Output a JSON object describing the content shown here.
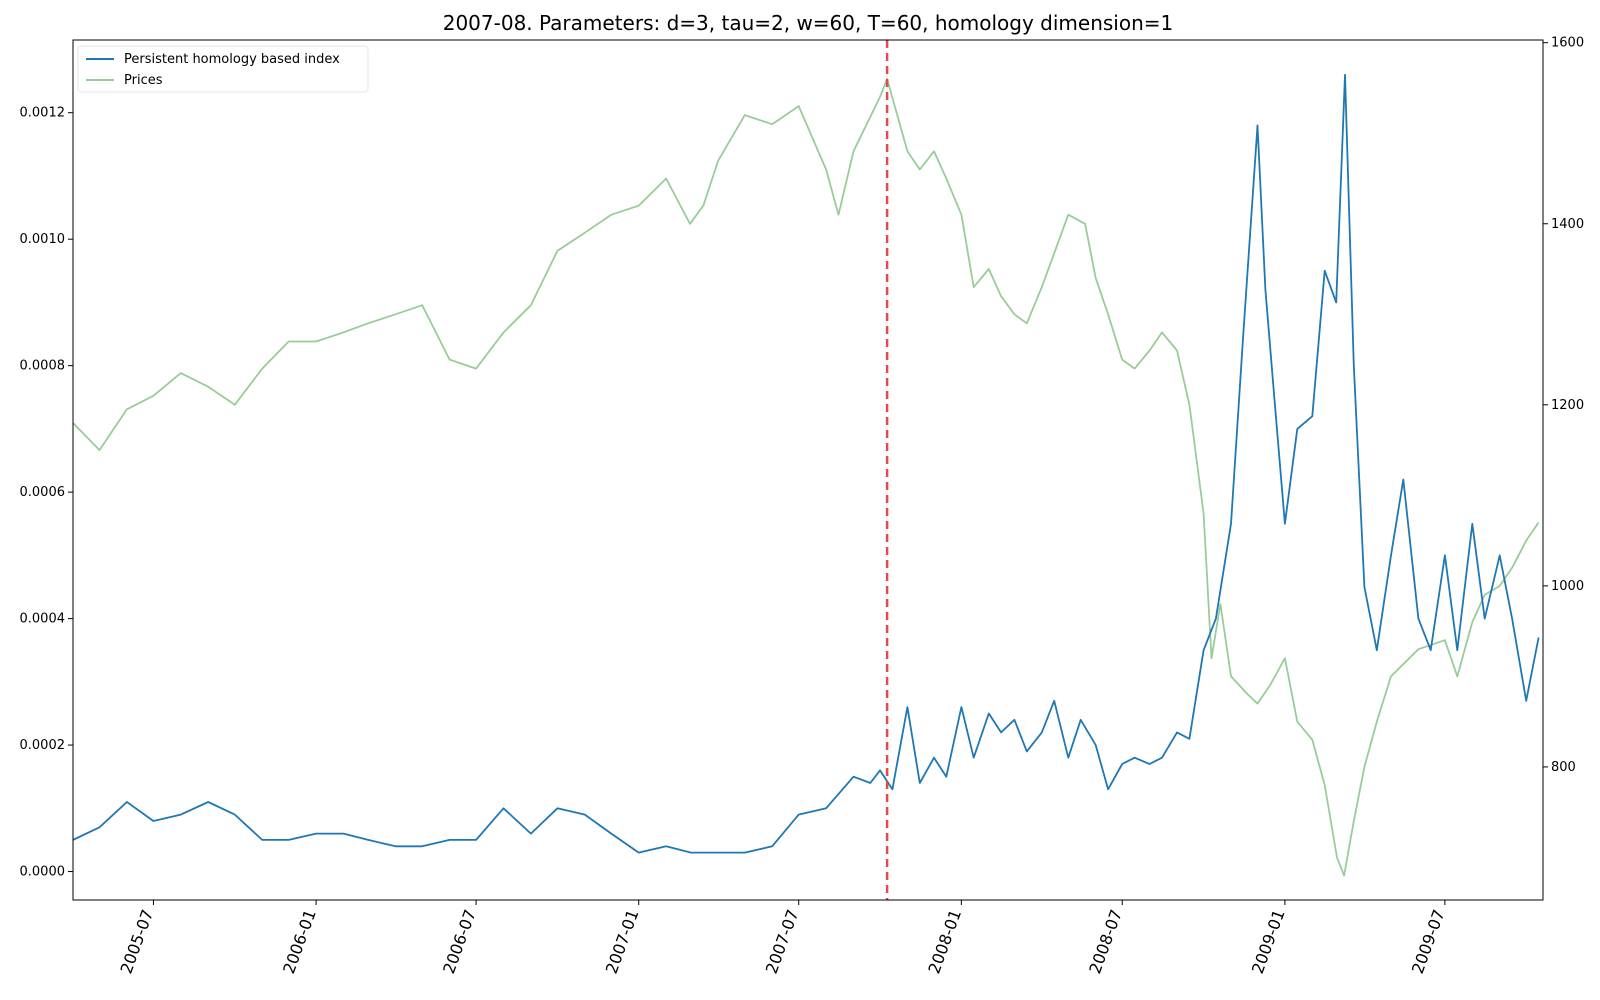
{
  "chart_data": {
    "type": "line",
    "title": "2007-08. Parameters: d=3, tau=2, w=60, T=60, homology dimension=1",
    "xlabel": "",
    "ylabel_left": "",
    "ylabel_right": "",
    "x_range": [
      "2005-04-01",
      "2009-10-20"
    ],
    "y_left_range": [
      -4.5e-05,
      0.001315
    ],
    "y_right_range": [
      653,
      1603
    ],
    "x_ticks": [
      "2005-07",
      "2006-01",
      "2006-07",
      "2007-01",
      "2007-07",
      "2008-01",
      "2008-07",
      "2009-01",
      "2009-07"
    ],
    "y_left_ticks": [
      "0.0000",
      "0.0002",
      "0.0004",
      "0.0006",
      "0.0008",
      "0.0010",
      "0.0012"
    ],
    "y_right_ticks": [
      "800",
      "1000",
      "1200",
      "1400",
      "1600"
    ],
    "legend_position": "top-left",
    "grid": false,
    "vertical_marker": {
      "x": "2007-10-09",
      "color": "#e8484a",
      "style": "dashed"
    },
    "series": [
      {
        "name": "Persistent homology based index",
        "axis": "left",
        "color": "#1f77b4",
        "x": [
          "2005-04-01",
          "2005-05-01",
          "2005-06-01",
          "2005-07-01",
          "2005-08-01",
          "2005-09-01",
          "2005-10-01",
          "2005-11-01",
          "2005-12-01",
          "2006-01-01",
          "2006-02-01",
          "2006-03-01",
          "2006-04-01",
          "2006-05-01",
          "2006-06-01",
          "2006-07-01",
          "2006-08-01",
          "2006-09-01",
          "2006-10-01",
          "2006-11-01",
          "2006-12-01",
          "2007-01-01",
          "2007-02-01",
          "2007-03-01",
          "2007-04-01",
          "2007-05-01",
          "2007-06-01",
          "2007-07-01",
          "2007-08-01",
          "2007-09-01",
          "2007-09-20",
          "2007-10-01",
          "2007-10-15",
          "2007-11-01",
          "2007-11-15",
          "2007-12-01",
          "2007-12-15",
          "2008-01-01",
          "2008-01-15",
          "2008-02-01",
          "2008-02-15",
          "2008-03-01",
          "2008-03-15",
          "2008-04-01",
          "2008-04-15",
          "2008-05-01",
          "2008-05-15",
          "2008-06-01",
          "2008-06-15",
          "2008-07-01",
          "2008-07-15",
          "2008-08-01",
          "2008-08-15",
          "2008-09-01",
          "2008-09-15",
          "2008-10-01",
          "2008-10-15",
          "2008-11-01",
          "2008-11-15",
          "2008-12-01",
          "2008-12-10",
          "2008-12-20",
          "2009-01-01",
          "2009-01-15",
          "2009-02-01",
          "2009-02-15",
          "2009-02-28",
          "2009-03-10",
          "2009-03-20",
          "2009-04-01",
          "2009-04-15",
          "2009-05-01",
          "2009-05-15",
          "2009-06-01",
          "2009-06-15",
          "2009-07-01",
          "2009-07-15",
          "2009-08-01",
          "2009-08-15",
          "2009-09-01",
          "2009-09-15",
          "2009-10-01",
          "2009-10-15"
        ],
        "values": [
          5e-05,
          7e-05,
          0.00011,
          8e-05,
          9e-05,
          0.00011,
          9e-05,
          5e-05,
          5e-05,
          6e-05,
          6e-05,
          5e-05,
          4e-05,
          4e-05,
          5e-05,
          5e-05,
          0.0001,
          6e-05,
          0.0001,
          9e-05,
          6e-05,
          3e-05,
          4e-05,
          3e-05,
          3e-05,
          3e-05,
          4e-05,
          9e-05,
          0.0001,
          0.00015,
          0.00014,
          0.00016,
          0.00013,
          0.00026,
          0.00014,
          0.00018,
          0.00015,
          0.00026,
          0.00018,
          0.00025,
          0.00022,
          0.00024,
          0.00019,
          0.00022,
          0.00027,
          0.00018,
          0.00024,
          0.0002,
          0.00013,
          0.00017,
          0.00018,
          0.00017,
          0.00018,
          0.00022,
          0.00021,
          0.00035,
          0.0004,
          0.00055,
          0.00085,
          0.00118,
          0.00092,
          0.00075,
          0.00055,
          0.0007,
          0.00072,
          0.00095,
          0.0009,
          0.00126,
          0.0008,
          0.00045,
          0.00035,
          0.0005,
          0.00062,
          0.0004,
          0.00035,
          0.0005,
          0.00035,
          0.00055,
          0.0004,
          0.0005,
          0.0004,
          0.00027,
          0.00037
        ]
      },
      {
        "name": "Prices",
        "axis": "right",
        "color": "#99cc99",
        "x": [
          "2005-04-01",
          "2005-05-01",
          "2005-06-01",
          "2005-07-01",
          "2005-08-01",
          "2005-09-01",
          "2005-10-01",
          "2005-11-01",
          "2005-12-01",
          "2006-01-01",
          "2006-02-01",
          "2006-03-01",
          "2006-04-01",
          "2006-05-01",
          "2006-06-01",
          "2006-07-01",
          "2006-08-01",
          "2006-09-01",
          "2006-10-01",
          "2006-11-01",
          "2006-12-01",
          "2007-01-01",
          "2007-02-01",
          "2007-02-28",
          "2007-03-15",
          "2007-04-01",
          "2007-05-01",
          "2007-06-01",
          "2007-07-01",
          "2007-08-01",
          "2007-08-15",
          "2007-09-01",
          "2007-10-01",
          "2007-10-09",
          "2007-11-01",
          "2007-11-15",
          "2007-12-01",
          "2007-12-15",
          "2008-01-01",
          "2008-01-15",
          "2008-02-01",
          "2008-02-15",
          "2008-03-01",
          "2008-03-15",
          "2008-04-01",
          "2008-05-01",
          "2008-05-20",
          "2008-06-01",
          "2008-06-15",
          "2008-07-01",
          "2008-07-15",
          "2008-08-01",
          "2008-08-15",
          "2008-09-01",
          "2008-09-15",
          "2008-10-01",
          "2008-10-10",
          "2008-10-20",
          "2008-11-01",
          "2008-11-20",
          "2008-12-01",
          "2008-12-15",
          "2009-01-01",
          "2009-01-15",
          "2009-02-01",
          "2009-02-15",
          "2009-03-01",
          "2009-03-09",
          "2009-03-20",
          "2009-04-01",
          "2009-04-15",
          "2009-05-01",
          "2009-06-01",
          "2009-07-01",
          "2009-07-15",
          "2009-08-01",
          "2009-08-15",
          "2009-09-01",
          "2009-09-15",
          "2009-10-01",
          "2009-10-15"
        ],
        "values": [
          1180,
          1150,
          1195,
          1210,
          1235,
          1220,
          1200,
          1240,
          1270,
          1270,
          1280,
          1290,
          1300,
          1310,
          1250,
          1240,
          1280,
          1310,
          1370,
          1390,
          1410,
          1420,
          1450,
          1400,
          1420,
          1470,
          1520,
          1510,
          1530,
          1460,
          1410,
          1480,
          1540,
          1560,
          1480,
          1460,
          1480,
          1450,
          1410,
          1330,
          1350,
          1320,
          1300,
          1290,
          1330,
          1410,
          1400,
          1340,
          1300,
          1250,
          1240,
          1260,
          1280,
          1260,
          1200,
          1080,
          920,
          980,
          900,
          880,
          870,
          890,
          920,
          850,
          830,
          780,
          700,
          680,
          740,
          800,
          850,
          900,
          930,
          940,
          900,
          960,
          990,
          1000,
          1020,
          1050,
          1070
        ]
      }
    ]
  }
}
